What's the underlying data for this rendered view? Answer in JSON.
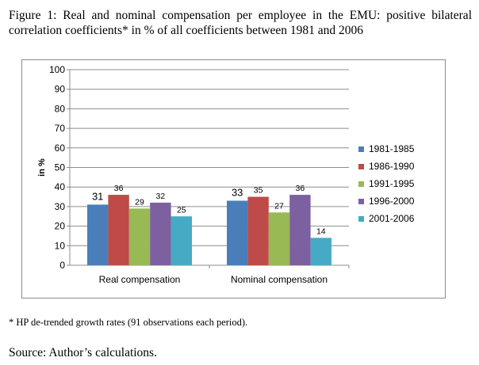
{
  "figure": {
    "caption": "Figure 1: Real and nominal compensation per employee in the EMU: positive bilateral correlation coefficients* in % of all coefficients between 1981 and 2006",
    "footnote": "* HP de-trended growth rates (91 observations each period).",
    "source": "Source: Author’s calculations."
  },
  "chart_data": {
    "type": "bar",
    "categories": [
      "Real compensation",
      "Nominal compensation"
    ],
    "series": [
      {
        "name": "1981-1985",
        "color": "#4a7ebb",
        "values": [
          31,
          33
        ]
      },
      {
        "name": "1986-1990",
        "color": "#be4b48",
        "values": [
          36,
          35
        ]
      },
      {
        "name": "1991-1995",
        "color": "#98b954",
        "values": [
          29,
          27
        ]
      },
      {
        "name": "1996-2000",
        "color": "#7d60a0",
        "values": [
          32,
          36
        ]
      },
      {
        "name": "2001-2006",
        "color": "#46aac5",
        "values": [
          25,
          14
        ]
      }
    ],
    "data_labels": [
      [
        "31",
        "36",
        "29",
        "32",
        "25"
      ],
      [
        "33",
        "35",
        "27",
        "36",
        "14"
      ]
    ],
    "ylabel": "in %",
    "ylim": [
      0,
      100
    ],
    "yticks": [
      0,
      10,
      20,
      30,
      40,
      50,
      60,
      70,
      80,
      90,
      100
    ],
    "grid": true,
    "legend_position": "right"
  }
}
